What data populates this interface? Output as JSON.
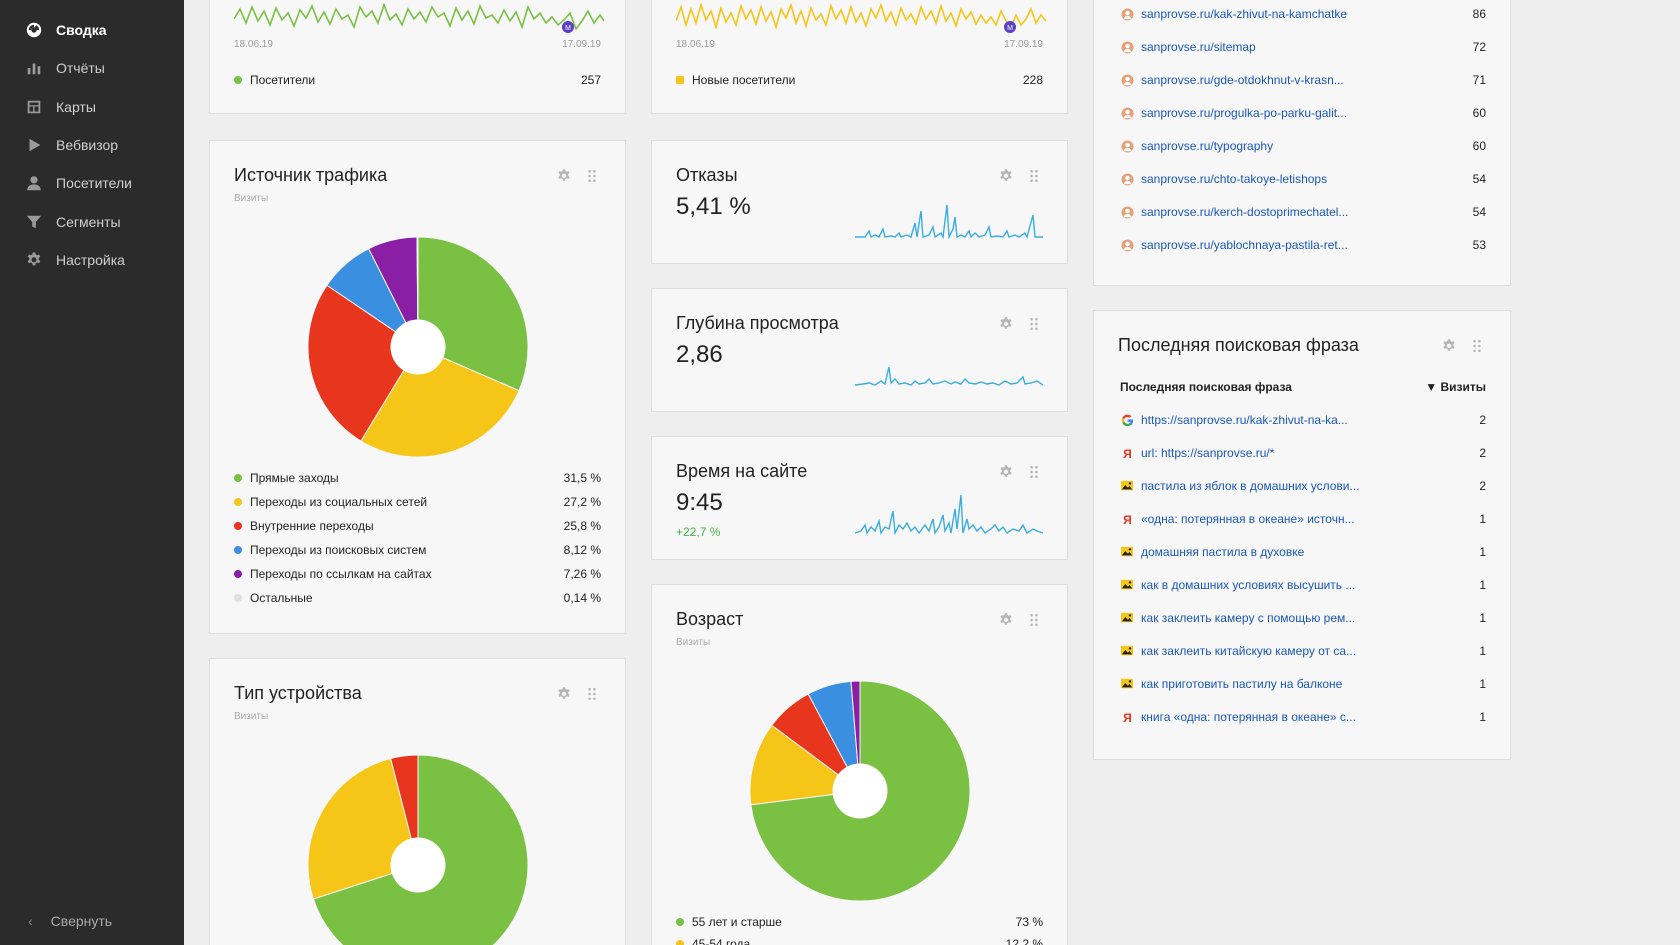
{
  "sidebar": {
    "items": [
      {
        "label": "Сводка",
        "icon": "dashboard-icon",
        "active": true
      },
      {
        "label": "Отчёты",
        "icon": "bar-chart-icon",
        "active": false
      },
      {
        "label": "Карты",
        "icon": "map-icon",
        "active": false
      },
      {
        "label": "Вебвизор",
        "icon": "play-icon",
        "active": false
      },
      {
        "label": "Посетители",
        "icon": "user-icon",
        "active": false
      },
      {
        "label": "Сегменты",
        "icon": "filter-icon",
        "active": false
      },
      {
        "label": "Настройка",
        "icon": "gear-icon",
        "active": false
      }
    ],
    "collapse_label": "Свернуть"
  },
  "visitors": {
    "date_start": "18.06.19",
    "date_end": "17.09.19",
    "legend_label": "Посетители",
    "value": "257",
    "color": "#7ac143"
  },
  "new_visitors": {
    "date_start": "18.06.19",
    "date_end": "17.09.19",
    "legend_label": "Новые посетители",
    "value": "228",
    "color": "#f5c518"
  },
  "traffic": {
    "title": "Источник трафика",
    "subtitle": "Визиты",
    "legend": [
      {
        "label": "Прямые заходы",
        "value": "31,5 %",
        "color": "#7ac143"
      },
      {
        "label": "Переходы из социальных сетей",
        "value": "27,2 %",
        "color": "#f5c518"
      },
      {
        "label": "Внутренние переходы",
        "value": "25,8 %",
        "color": "#e8361e"
      },
      {
        "label": "Переходы из поисковых систем",
        "value": "8,12 %",
        "color": "#3b8fe0"
      },
      {
        "label": "Переходы по ссылкам на сайтах",
        "value": "7,26 %",
        "color": "#8a1fa5"
      },
      {
        "label": "Остальные",
        "value": "0,14 %",
        "color": "#e0e0e0"
      }
    ]
  },
  "device": {
    "title": "Тип устройства",
    "subtitle": "Визиты"
  },
  "bounce": {
    "title": "Отказы",
    "value": "5,41 %"
  },
  "depth": {
    "title": "Глубина просмотра",
    "value": "2,86"
  },
  "time_on_site": {
    "title": "Время на сайте",
    "value": "9:45",
    "delta": "+22,7 %"
  },
  "age": {
    "title": "Возраст",
    "subtitle": "Визиты",
    "legend": [
      {
        "label": "55 лет и старше",
        "value": "73 %",
        "color": "#7ac143"
      },
      {
        "label": "45-54 года",
        "value": "12,2 %",
        "color": "#f5c518"
      }
    ]
  },
  "pages": {
    "rows": [
      {
        "url": "sanprovse.ru/kak-zhivut-na-kamchatke",
        "value": "86"
      },
      {
        "url": "sanprovse.ru/sitemap",
        "value": "72"
      },
      {
        "url": "sanprovse.ru/gde-otdokhnut-v-krasn...",
        "value": "71"
      },
      {
        "url": "sanprovse.ru/progulka-po-parku-galit...",
        "value": "60"
      },
      {
        "url": "sanprovse.ru/typography",
        "value": "60"
      },
      {
        "url": "sanprovse.ru/chto-takoye-letishops",
        "value": "54"
      },
      {
        "url": "sanprovse.ru/kerch-dostoprimechatel...",
        "value": "54"
      },
      {
        "url": "sanprovse.ru/yablochnaya-pastila-ret...",
        "value": "53"
      }
    ]
  },
  "search": {
    "title": "Последняя поисковая фраза",
    "col_phrase": "Последняя поисковая фраза",
    "col_visits": "▼ Визиты",
    "rows": [
      {
        "icon": "google-icon",
        "text": "https://sanprovse.ru/kak-zhivut-na-ka...",
        "value": "2"
      },
      {
        "icon": "yandex-icon",
        "text": "url: https://sanprovse.ru/*",
        "value": "2"
      },
      {
        "icon": "image-search-icon",
        "text": "пастила из яблок в домашних услови...",
        "value": "2"
      },
      {
        "icon": "yandex-icon",
        "text": "«одна: потерянная в океане» источн...",
        "value": "1"
      },
      {
        "icon": "image-search-icon",
        "text": "домашняя пастила в духовке",
        "value": "1"
      },
      {
        "icon": "image-search-icon",
        "text": "как в домашних условиях высушить ...",
        "value": "1"
      },
      {
        "icon": "image-search-icon",
        "text": "как заклеить камеру с помощью рем...",
        "value": "1"
      },
      {
        "icon": "image-search-icon",
        "text": "как заклеить китайскую камеру от са...",
        "value": "1"
      },
      {
        "icon": "image-search-icon",
        "text": "как приготовить пастилу на балконе",
        "value": "1"
      },
      {
        "icon": "yandex-icon",
        "text": "книга «одна: потерянная в океане» с...",
        "value": "1"
      }
    ]
  },
  "chart_data": [
    {
      "type": "pie",
      "title": "Источник трафика",
      "categories": [
        "Прямые заходы",
        "Переходы из социальных сетей",
        "Внутренние переходы",
        "Переходы из поисковых систем",
        "Переходы по ссылкам на сайтах",
        "Остальные"
      ],
      "values": [
        31.5,
        27.2,
        25.8,
        8.12,
        7.26,
        0.14
      ],
      "colors": [
        "#7ac143",
        "#f5c518",
        "#e8361e",
        "#3b8fe0",
        "#8a1fa5",
        "#e0e0e0"
      ]
    },
    {
      "type": "pie",
      "title": "Тип устройства",
      "values": [
        70,
        26,
        4
      ],
      "colors": [
        "#7ac143",
        "#f5c518",
        "#e8361e"
      ]
    },
    {
      "type": "pie",
      "title": "Возраст",
      "values": [
        73,
        12.2,
        7,
        6.5,
        1.3
      ],
      "colors": [
        "#7ac143",
        "#f5c518",
        "#e8361e",
        "#3b8fe0",
        "#8a1fa5"
      ]
    }
  ]
}
